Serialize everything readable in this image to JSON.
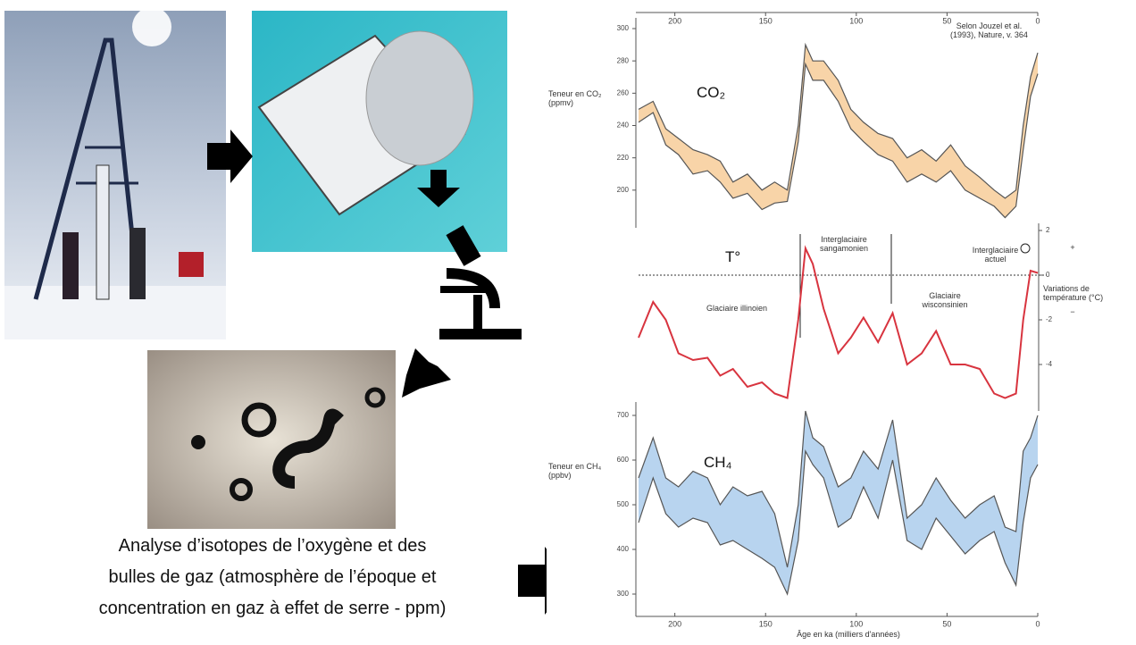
{
  "caption_lines": [
    "Analyse d’isotopes de l’oxygène et des",
    "bulles de gaz (atmosphère de l’époque et",
    "concentration en gaz à effet de serre - ppm)"
  ],
  "chart_data": [
    {
      "type": "band",
      "title": "CO₂",
      "ylabel": "Teneur en CO₂ (ppmv)",
      "y_axis": "left",
      "fill": "#f8d4a8",
      "annotations": [
        "Selon Jouzel et al. (1993), Nature, v. 364"
      ],
      "x": [
        220,
        212,
        205,
        198,
        190,
        182,
        175,
        168,
        160,
        152,
        145,
        138,
        132,
        128,
        124,
        118,
        110,
        103,
        96,
        88,
        80,
        72,
        64,
        56,
        48,
        40,
        32,
        24,
        18,
        12,
        8,
        4,
        0
      ],
      "series": [
        {
          "color": "#555555",
          "values": [
            242,
            248,
            228,
            222,
            210,
            212,
            205,
            195,
            198,
            188,
            192,
            193,
            230,
            278,
            268,
            268,
            255,
            238,
            230,
            222,
            218,
            205,
            210,
            205,
            212,
            200,
            195,
            190,
            183,
            190,
            225,
            258,
            272
          ]
        },
        {
          "color": "#555555",
          "values": [
            250,
            255,
            238,
            232,
            225,
            222,
            218,
            205,
            210,
            200,
            205,
            200,
            240,
            290,
            280,
            280,
            268,
            250,
            242,
            235,
            232,
            220,
            225,
            218,
            228,
            215,
            208,
            200,
            195,
            200,
            240,
            270,
            285
          ]
        }
      ],
      "xlim": [
        220,
        0
      ],
      "xticks": [
        200,
        150,
        100,
        50,
        0
      ],
      "ylim": [
        180,
        300
      ],
      "yticks": [
        200,
        220,
        240,
        260,
        280,
        300
      ]
    },
    {
      "type": "line",
      "title": "T°",
      "ylabel": "Variations de température (°C)",
      "y_axis": "right",
      "zero_line": true,
      "annotations": [
        "Interglaciaire sangamonien",
        "Interglaciaire actuel",
        "Glaciaire illinoien",
        "Glaciaire wisconsinien",
        "+",
        "−"
      ],
      "x": [
        220,
        212,
        205,
        198,
        190,
        182,
        175,
        168,
        160,
        152,
        145,
        138,
        132,
        128,
        124,
        118,
        110,
        103,
        96,
        88,
        80,
        72,
        64,
        56,
        48,
        40,
        32,
        24,
        18,
        12,
        8,
        4,
        0
      ],
      "series": [
        {
          "color": "#d8343f",
          "values": [
            -2.8,
            -1.2,
            -2,
            -3.5,
            -3.8,
            -3.7,
            -4.5,
            -4.2,
            -5,
            -4.8,
            -5.3,
            -5.5,
            -2,
            1.2,
            0.5,
            -1.5,
            -3.5,
            -2.8,
            -1.9,
            -3,
            -1.7,
            -4,
            -3.5,
            -2.5,
            -4,
            -4,
            -4.2,
            -5.3,
            -5.5,
            -5.3,
            -2,
            0.2,
            0.1
          ]
        }
      ],
      "xlim": [
        220,
        0
      ],
      "ylim": [
        -6,
        3
      ],
      "yticks": [
        2,
        0,
        -2,
        -4
      ]
    },
    {
      "type": "band",
      "title": "CH₄",
      "ylabel": "Teneur en CH₄ (ppbv)",
      "xlabel": "Âge en ka (milliers d'années)",
      "y_axis": "left",
      "fill": "#b8d4ef",
      "x": [
        220,
        212,
        205,
        198,
        190,
        182,
        175,
        168,
        160,
        152,
        145,
        138,
        132,
        128,
        124,
        118,
        110,
        103,
        96,
        88,
        80,
        72,
        64,
        56,
        48,
        40,
        32,
        24,
        18,
        12,
        8,
        4,
        0
      ],
      "series": [
        {
          "color": "#555555",
          "values": [
            460,
            560,
            480,
            450,
            470,
            460,
            410,
            420,
            400,
            380,
            360,
            300,
            420,
            620,
            590,
            560,
            450,
            470,
            540,
            470,
            600,
            420,
            400,
            470,
            430,
            390,
            420,
            440,
            370,
            320,
            460,
            560,
            590
          ]
        },
        {
          "color": "#555555",
          "values": [
            560,
            650,
            560,
            540,
            575,
            560,
            500,
            540,
            520,
            530,
            480,
            360,
            500,
            710,
            650,
            630,
            540,
            560,
            620,
            580,
            690,
            470,
            500,
            560,
            510,
            470,
            500,
            520,
            450,
            440,
            620,
            650,
            700
          ]
        }
      ],
      "xlim": [
        220,
        0
      ],
      "xticks": [
        200,
        150,
        100,
        50,
        0
      ],
      "ylim": [
        280,
        720
      ],
      "yticks": [
        300,
        400,
        500,
        600,
        700
      ]
    }
  ]
}
